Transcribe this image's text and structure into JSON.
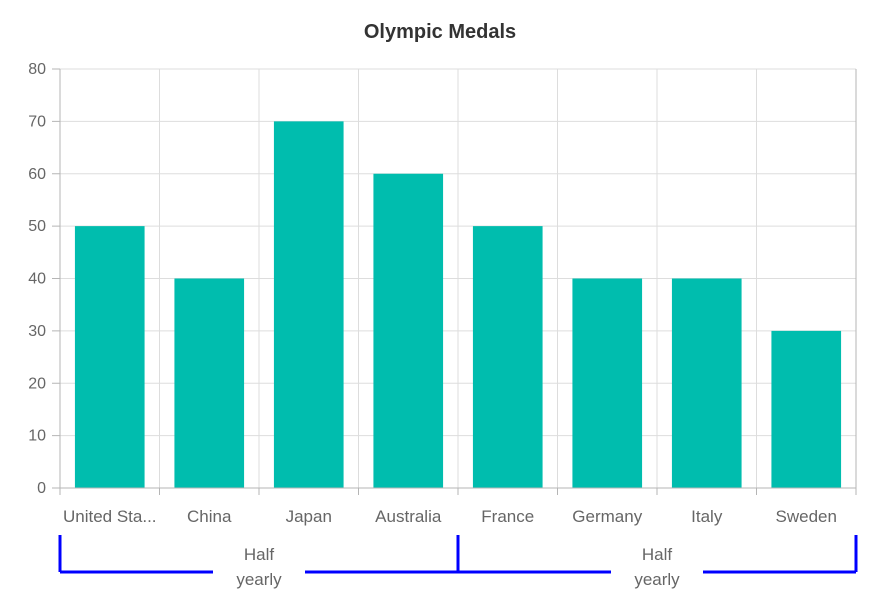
{
  "chart_data": {
    "type": "bar",
    "title": "Olympic Medals",
    "categories": [
      "United States",
      "China",
      "Japan",
      "Australia",
      "France",
      "Germany",
      "Italy",
      "Sweden"
    ],
    "category_display": [
      "United Sta...",
      "China",
      "Japan",
      "Australia",
      "France",
      "Germany",
      "Italy",
      "Sweden"
    ],
    "values": [
      50,
      40,
      70,
      60,
      50,
      40,
      40,
      30
    ],
    "ylim": [
      0,
      80
    ],
    "yticks": [
      0,
      10,
      20,
      30,
      40,
      50,
      60,
      70,
      80
    ],
    "grid": true,
    "bar_color": "#00bdae",
    "axis_color": "#b5b5b5",
    "grid_color": "#dddddd",
    "multilevel_color": "#0000ff",
    "multilevel_labels": [
      {
        "text_line1": "Half",
        "text_line2": "yearly",
        "start": 0,
        "end": 3
      },
      {
        "text_line1": "Half",
        "text_line2": "yearly",
        "start": 4,
        "end": 7
      }
    ]
  }
}
